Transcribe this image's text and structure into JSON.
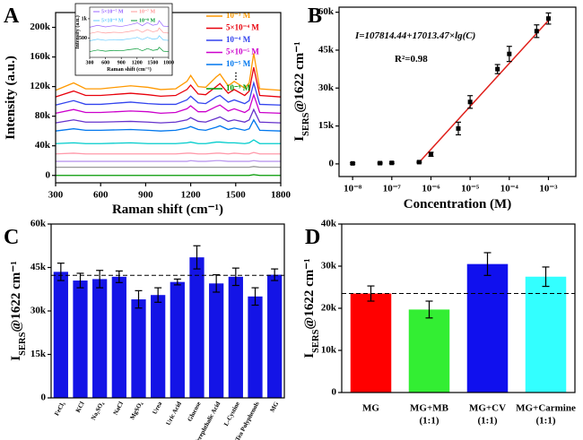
{
  "chart_data": [
    {
      "type": "line",
      "panel_label": "A",
      "x_label": "Raman shift (cm⁻¹)",
      "y_label": "Intensity (a.u.)",
      "xlim": [
        300,
        1800
      ],
      "ylim": [
        -10000,
        220000
      ],
      "xticks": [
        300,
        600,
        900,
        1200,
        1500,
        1800
      ],
      "yticks": [
        0,
        {
          "value": 40000,
          "label": "40k"
        },
        {
          "value": 80000,
          "label": "80k"
        },
        {
          "value": 120000,
          "label": "120k"
        },
        {
          "value": 160000,
          "label": "160k"
        },
        {
          "value": 200000,
          "label": "200k"
        }
      ],
      "legend_ellipsis": "⋮",
      "x": [
        300,
        420,
        500,
        600,
        800,
        915,
        1000,
        1100,
        1175,
        1200,
        1250,
        1300,
        1370,
        1395,
        1450,
        1490,
        1560,
        1590,
        1620,
        1660,
        1800
      ],
      "series": [
        {
          "name": "10⁻³ M",
          "color": "#ff9900",
          "values": [
            115000,
            125000,
            117000,
            117000,
            121000,
            119000,
            116000,
            117000,
            127000,
            135000,
            120000,
            119000,
            133000,
            137000,
            121000,
            127000,
            118000,
            125000,
            165000,
            117000,
            115000
          ]
        },
        {
          "name": "5×10⁻⁴ M",
          "color": "#e8000b",
          "values": [
            106000,
            114000,
            108000,
            108000,
            111000,
            109000,
            107000,
            108000,
            116000,
            122000,
            110000,
            109000,
            120000,
            124000,
            111000,
            116000,
            108000,
            114000,
            146000,
            108000,
            106000
          ]
        },
        {
          "name": "10⁻⁴ M",
          "color": "#3344ee",
          "values": [
            95000,
            101000,
            96000,
            96000,
            99000,
            97000,
            96000,
            96000,
            102000,
            107000,
            98000,
            97000,
            106000,
            108000,
            99000,
            102000,
            97000,
            101000,
            125000,
            96000,
            95000
          ]
        },
        {
          "name": "5×10⁻⁵ M",
          "color": "#cc00cc",
          "values": [
            84000,
            89000,
            85000,
            85000,
            87000,
            86000,
            84000,
            85000,
            90000,
            94000,
            86000,
            86000,
            93000,
            95000,
            87000,
            90000,
            85000,
            89000,
            109000,
            85000,
            84000
          ]
        },
        {
          "color": "#6633cc",
          "values": [
            71000,
            75000,
            72000,
            72000,
            73000,
            72000,
            71000,
            72000,
            75000,
            78000,
            73000,
            72000,
            77000,
            79000,
            73000,
            75000,
            72000,
            75000,
            89000,
            72000,
            71000
          ]
        },
        {
          "name": "10⁻⁵ M",
          "color": "#0077ee",
          "values": [
            60000,
            63000,
            61000,
            61000,
            62000,
            61000,
            60000,
            61000,
            64000,
            66000,
            62000,
            61000,
            65000,
            67000,
            62000,
            64000,
            61000,
            63000,
            75000,
            61000,
            60000
          ]
        },
        {
          "color": "#00cccc",
          "values": [
            43000,
            44000,
            43000,
            43000,
            44000,
            43000,
            43000,
            43000,
            44000,
            45000,
            43000,
            43000,
            45000,
            45000,
            44000,
            44000,
            43000,
            44000,
            48000,
            43000,
            43000
          ]
        },
        {
          "color": "#ff99aa",
          "values": [
            29000,
            30000,
            29000,
            29000,
            29000,
            29000,
            29000,
            29000,
            30000,
            30000,
            29000,
            29000,
            30000,
            30000,
            29000,
            30000,
            29000,
            29000,
            31000,
            29000,
            29000
          ]
        },
        {
          "color": "#bb99ee",
          "values": [
            19000,
            19000,
            19000,
            19000,
            19000,
            19000,
            19000,
            19000,
            19000,
            20000,
            19000,
            19000,
            20000,
            20000,
            19000,
            19000,
            19000,
            19000,
            20000,
            19000,
            19000
          ]
        },
        {
          "color": "#999999",
          "values": [
            11000,
            11000,
            11000,
            11000,
            11000,
            11000,
            11000,
            11000,
            11000,
            11000,
            11000,
            11000,
            11000,
            11000,
            11000,
            11000,
            11000,
            11000,
            12000,
            11000,
            11000
          ]
        },
        {
          "name": "10⁻⁹ M",
          "color": "#009900",
          "values": [
            0,
            0,
            0,
            0,
            0,
            0,
            0,
            0,
            0,
            0,
            0,
            0,
            0,
            0,
            0,
            0,
            0,
            0,
            1000,
            0,
            0
          ]
        }
      ]
    },
    {
      "type": "line",
      "x_label": "Raman shift (cm⁻¹)",
      "y_label": "Intensity (a.u.)",
      "xlim": [
        300,
        1800
      ],
      "ylim": [
        0,
        1300
      ],
      "xticks": [
        300,
        600,
        900,
        1200,
        1500,
        1800
      ],
      "yticks": [
        500,
        {
          "value": 1000,
          "label": "1k"
        }
      ],
      "x": [
        300,
        450,
        600,
        750,
        900,
        1050,
        1175,
        1200,
        1300,
        1370,
        1395,
        1500,
        1590,
        1620,
        1700,
        1800
      ],
      "series": [
        {
          "name": "5×10⁻⁷ M",
          "color": "#9966ff",
          "values": [
            780,
            830,
            790,
            820,
            800,
            840,
            880,
            900,
            820,
            880,
            900,
            830,
            860,
            950,
            810,
            800
          ]
        },
        {
          "name": "10⁻⁷ M",
          "color": "#ff9999",
          "values": [
            620,
            660,
            630,
            650,
            640,
            670,
            700,
            720,
            650,
            700,
            720,
            660,
            690,
            760,
            640,
            630
          ]
        },
        {
          "name": "5×10⁻⁸ M",
          "color": "#66ccff",
          "values": [
            430,
            470,
            440,
            460,
            450,
            480,
            500,
            520,
            460,
            500,
            520,
            470,
            490,
            560,
            450,
            440
          ]
        },
        {
          "name": "10⁻⁸ M",
          "color": "#009933",
          "values": [
            150,
            190,
            160,
            180,
            170,
            200,
            220,
            230,
            170,
            210,
            230,
            180,
            200,
            260,
            160,
            150
          ]
        }
      ]
    },
    {
      "type": "scatter",
      "panel_label": "B",
      "x_label": "Concentration (M)",
      "y_label": {
        "main": "I",
        "sub": "SERS",
        "rest": "@1622 cm⁻¹"
      },
      "x_log": true,
      "xlim": [
        4.5e-09,
        0.005
      ],
      "ylim": [
        -5000,
        62000
      ],
      "xticks": [
        {
          "value": 1e-08,
          "label": "10⁻⁸"
        },
        {
          "value": 1e-07,
          "label": "10⁻⁷"
        },
        {
          "value": 1e-06,
          "label": "10⁻⁶"
        },
        {
          "value": 1e-05,
          "label": "10⁻⁵"
        },
        {
          "value": 0.0001,
          "label": "10⁻⁴"
        },
        {
          "value": 0.001,
          "label": "10⁻³"
        }
      ],
      "yticks": [
        0,
        {
          "value": 15000,
          "label": "15k"
        },
        {
          "value": 30000,
          "label": "30k"
        },
        {
          "value": 45000,
          "label": "45k"
        },
        {
          "value": 60000,
          "label": "60k"
        }
      ],
      "equation": "I=107814.44+17013.47×lg(C)",
      "r_squared": "R²=0.98",
      "color": "#000000",
      "x": [
        1e-08,
        5e-08,
        1e-07,
        5e-07,
        1e-06,
        5e-06,
        1e-05,
        5e-05,
        0.0001,
        0.0005,
        0.001
      ],
      "values": [
        200,
        300,
        400,
        700,
        3800,
        14000,
        24500,
        37500,
        43500,
        52500,
        57500
      ],
      "errors": [
        300,
        300,
        300,
        300,
        800,
        2500,
        2500,
        1800,
        3000,
        2500,
        2200
      ],
      "fit_line": {
        "color": "#e0201b",
        "x": [
          5e-07,
          0.001
        ],
        "y": [
          611,
          56774
        ]
      }
    },
    {
      "type": "bar",
      "panel_label": "C",
      "y_label": {
        "main": "I",
        "sub": "SERS",
        "rest": "@1622 cm⁻¹"
      },
      "ylim": [
        0,
        60000
      ],
      "yticks": [
        0,
        {
          "value": 15000,
          "label": "15k"
        },
        {
          "value": 30000,
          "label": "30k"
        },
        {
          "value": 45000,
          "label": "45k"
        },
        {
          "value": 60000,
          "label": "60k"
        }
      ],
      "categories": [
        "FeCl₃",
        "KCl",
        "Na₂SO₄",
        "NaCl",
        "MgSO₄",
        "Urea",
        "Uric Acid",
        "Glucose",
        "Terephthalic Acid",
        "L-Cystine",
        "Tea Polyphenols",
        "MG"
      ],
      "color": "#1414e6",
      "values": [
        43500,
        40500,
        41000,
        41800,
        34000,
        35500,
        40000,
        48500,
        39500,
        41800,
        35000,
        42500
      ],
      "errors": [
        3000,
        2500,
        3000,
        2000,
        3000,
        2500,
        1000,
        4000,
        3000,
        3000,
        3000,
        2000
      ],
      "reference_line": 42300
    },
    {
      "type": "bar",
      "panel_label": "D",
      "y_label": {
        "main": "I",
        "sub": "SERS",
        "rest": "@1622 cm⁻¹"
      },
      "ylim": [
        0,
        40000
      ],
      "yticks": [
        0,
        {
          "value": 10000,
          "label": "10k"
        },
        {
          "value": 20000,
          "label": "20k"
        },
        {
          "value": 30000,
          "label": "30k"
        },
        {
          "value": 40000,
          "label": "40k"
        }
      ],
      "categories": [
        [
          "MG"
        ],
        [
          "MG+MB",
          "(1:1)"
        ],
        [
          "MG+CV",
          "(1:1)"
        ],
        [
          "MG+Carmine",
          "(1:1)"
        ]
      ],
      "colors": [
        "#ff0000",
        "#33ee33",
        "#1010ee",
        "#33ffff"
      ],
      "values": [
        23500,
        19700,
        30500,
        27500
      ],
      "errors": [
        1800,
        2000,
        2700,
        2300
      ],
      "reference_line": 23500
    }
  ]
}
